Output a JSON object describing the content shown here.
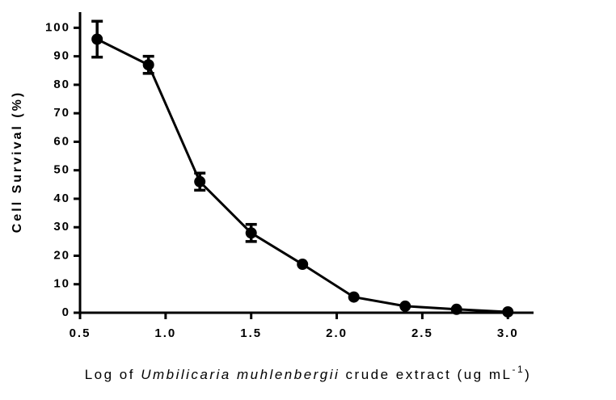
{
  "chart_data": {
    "type": "line",
    "y_label": "Cell Survival (%)",
    "x_label_parts": [
      "Log of ",
      "Umbilicaria muhlenbergii",
      " crude extract (ug mL",
      "-1",
      ")"
    ],
    "x": [
      0.6,
      0.9,
      1.2,
      1.5,
      1.8,
      2.1,
      2.4,
      2.7,
      3.0
    ],
    "series": [
      {
        "name": "Cell Survival",
        "color": "#000000",
        "values": [
          96,
          87,
          46,
          28,
          17,
          5.5,
          2.3,
          1.2,
          0.3
        ],
        "errors": [
          6.3,
          3,
          3,
          3,
          0,
          0,
          0,
          0,
          0
        ]
      }
    ],
    "xlim": [
      0.5,
      3.15
    ],
    "xticks": [
      {
        "value": 0.5,
        "label": "0.5"
      },
      {
        "value": 1.0,
        "label": "1.0"
      },
      {
        "value": 1.5,
        "label": "1.5"
      },
      {
        "value": 2.0,
        "label": "2.0"
      },
      {
        "value": 2.5,
        "label": "2.5"
      },
      {
        "value": 3.0,
        "label": "3.0"
      }
    ],
    "ylim": [
      0,
      105.5
    ],
    "yticks": [
      0,
      10,
      20,
      30,
      40,
      50,
      60,
      70,
      80,
      90,
      100
    ],
    "grid": false
  }
}
